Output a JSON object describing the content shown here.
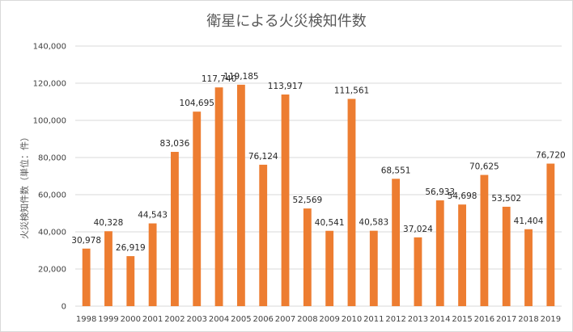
{
  "chart_data": {
    "type": "bar",
    "title": "衛星による火災検知件数",
    "xlabel": "",
    "ylabel": "火災検知件数（単位：件）",
    "categories": [
      "1998",
      "1999",
      "2000",
      "2001",
      "2002",
      "2003",
      "2004",
      "2005",
      "2006",
      "2007",
      "2008",
      "2009",
      "2010",
      "2011",
      "2012",
      "2013",
      "2014",
      "2015",
      "2016",
      "2017",
      "2018",
      "2019"
    ],
    "values": [
      30978,
      40328,
      26919,
      44543,
      83036,
      104695,
      117740,
      119185,
      76124,
      113917,
      52569,
      40541,
      111561,
      40583,
      68551,
      37024,
      56933,
      54698,
      70625,
      53502,
      41404,
      76720
    ],
    "data_labels": [
      "30,978",
      "40,328",
      "26,919",
      "44,543",
      "83,036",
      "104,695",
      "117,740",
      "119,185",
      "76,124",
      "113,917",
      "52,569",
      "40,541",
      "111,561",
      "40,583",
      "68,551",
      "37,024",
      "56,933",
      "54,698",
      "70,625",
      "53,502",
      "41,404",
      "76,720"
    ],
    "yticks": [
      0,
      20000,
      40000,
      60000,
      80000,
      100000,
      120000,
      140000
    ],
    "ytick_labels": [
      "0",
      "20,000",
      "40,000",
      "60,000",
      "80,000",
      "100,000",
      "120,000",
      "140,000"
    ],
    "ylim": [
      0,
      140000
    ],
    "grid": true,
    "legend": "none",
    "bar_color": "#ED7D31",
    "grid_color": "#D9D9D9"
  }
}
